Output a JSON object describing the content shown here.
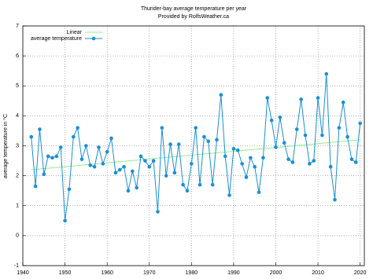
{
  "chart_data": {
    "type": "line",
    "title": "Thunder-bay average temperature per year",
    "subtitle": "Provided by RolfsWeather.ca",
    "y_label": "average temperature in °C",
    "xlim": [
      1940,
      2021
    ],
    "xticks": [
      1940,
      1950,
      1960,
      1970,
      1980,
      1990,
      2000,
      2010,
      2020
    ],
    "ylim": [
      -1,
      7
    ],
    "yticks": [
      -1,
      0,
      1,
      2,
      3,
      4,
      5,
      6,
      7
    ],
    "legend": "top-left",
    "series": [
      {
        "name": "Linear",
        "color": "#90ee90",
        "x": [
          1942,
          2020
        ],
        "values": [
          2.2,
          3.2
        ],
        "markers": false
      },
      {
        "name": "average temperature",
        "color": "#1a8fd6",
        "markers": true,
        "x": [
          1942,
          1943,
          1944,
          1945,
          1946,
          1947,
          1948,
          1949,
          1950,
          1951,
          1952,
          1953,
          1954,
          1955,
          1956,
          1957,
          1958,
          1959,
          1960,
          1961,
          1962,
          1963,
          1964,
          1965,
          1966,
          1967,
          1968,
          1969,
          1970,
          1971,
          1972,
          1973,
          1974,
          1975,
          1976,
          1977,
          1978,
          1979,
          1980,
          1981,
          1982,
          1983,
          1984,
          1985,
          1986,
          1987,
          1988,
          1989,
          1990,
          1991,
          1992,
          1993,
          1994,
          1995,
          1996,
          1997,
          1998,
          1999,
          2000,
          2001,
          2002,
          2003,
          2004,
          2005,
          2006,
          2007,
          2008,
          2009,
          2010,
          2011,
          2012,
          2013,
          2014,
          2015,
          2016,
          2017,
          2018,
          2019,
          2020
        ],
        "values": [
          3.3,
          1.65,
          3.55,
          2.05,
          2.65,
          2.6,
          2.65,
          2.95,
          0.5,
          1.55,
          3.3,
          3.6,
          2.55,
          3.0,
          2.35,
          2.3,
          2.95,
          2.4,
          2.8,
          3.25,
          2.1,
          2.2,
          2.3,
          1.5,
          2.15,
          1.6,
          2.65,
          2.5,
          2.3,
          2.5,
          0.8,
          3.6,
          2.0,
          3.05,
          2.1,
          3.05,
          1.7,
          1.5,
          2.4,
          3.6,
          1.7,
          3.3,
          3.15,
          1.7,
          3.2,
          4.7,
          2.65,
          1.35,
          2.9,
          2.85,
          2.4,
          1.95,
          2.6,
          2.3,
          1.45,
          2.6,
          4.6,
          3.85,
          2.95,
          3.95,
          3.1,
          2.55,
          2.45,
          3.55,
          4.55,
          3.35,
          2.4,
          2.5,
          4.6,
          3.35,
          5.4,
          2.3,
          1.2,
          3.6,
          4.45,
          3.3,
          2.55,
          2.45,
          3.75
        ]
      }
    ]
  }
}
